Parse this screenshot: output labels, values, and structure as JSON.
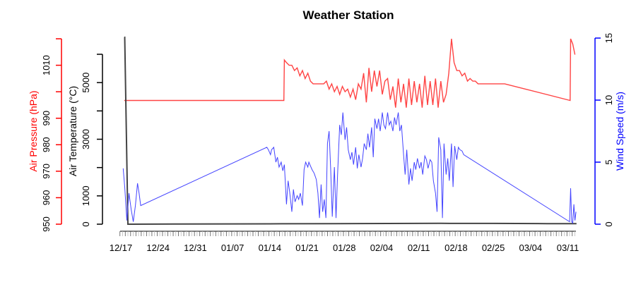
{
  "chart_data": {
    "type": "line",
    "title": "Weather Station",
    "xlabel": "",
    "x_tick_labels": [
      "12/17",
      "12/24",
      "12/31",
      "01/07",
      "01/14",
      "01/21",
      "01/28",
      "02/04",
      "02/11",
      "02/18",
      "02/25",
      "03/04",
      "03/11"
    ],
    "x_unit": "days since 12/17",
    "axes": {
      "pressure": {
        "label": "Air Pressure (hPa)",
        "color": "#ff0000",
        "ticks": [
          950,
          960,
          970,
          980,
          990,
          1000,
          1010,
          1020
        ],
        "tick_labels": [
          "950",
          "960",
          "970",
          "980",
          "990",
          "",
          "1010",
          ""
        ],
        "range": [
          950,
          1020
        ]
      },
      "temperature": {
        "label": "Air Temperature (°C)",
        "color": "#000000",
        "ticks": [
          0,
          1000,
          2000,
          3000,
          4000,
          5000,
          6000
        ],
        "tick_labels": [
          "0",
          "1000",
          "",
          "3000",
          "",
          "5000",
          ""
        ],
        "range": [
          0,
          6000
        ]
      },
      "wind": {
        "label": "Wind Speed (m/s)",
        "color": "#0000ff",
        "ticks": [
          0,
          5,
          10,
          15
        ],
        "tick_labels": [
          "0",
          "5",
          "10",
          "15"
        ],
        "range": [
          0,
          15
        ]
      }
    },
    "series": [
      {
        "name": "Air Pressure",
        "axis": "pressure",
        "color": "#ff4444",
        "x": [
          0.5,
          30.5,
          30.6,
          31,
          31.5,
          32,
          32.5,
          33,
          33.5,
          34,
          34.5,
          35,
          35.5,
          36,
          36.5,
          38,
          38.5,
          39,
          39.5,
          40,
          40.5,
          41,
          41.5,
          42,
          42.5,
          43,
          43.5,
          44,
          44.5,
          45,
          45.5,
          46,
          46.5,
          47,
          47.5,
          48,
          48.5,
          49,
          49.5,
          50,
          50.5,
          51,
          51.5,
          52,
          52.5,
          53,
          53.5,
          54,
          54.5,
          55,
          55.5,
          56,
          56.5,
          57,
          57.5,
          58,
          58.5,
          59,
          59.5,
          60,
          60.5,
          61,
          61.5,
          62,
          62.5,
          63,
          63.5,
          64,
          64.5,
          65,
          65.5,
          66,
          66.5,
          67,
          67.5,
          68,
          68.5,
          69,
          69.5,
          70,
          70.5,
          71,
          71.5,
          72,
          84.3,
          84.4,
          84.8,
          85.2
        ],
        "values": [
          996.7,
          996.7,
          1012,
          1011,
          1010,
          1010,
          1008,
          1009,
          1006,
          1008,
          1005,
          1007,
          1004,
          1003,
          1003,
          1003,
          1004,
          1001,
          1003,
          1000,
          1002,
          999,
          1002,
          1000,
          1001,
          998,
          1001,
          997,
          1003,
          1001,
          1007,
          996,
          1009,
          1000,
          1008,
          1002,
          1008,
          999,
          1004,
          1005,
          997,
          1002,
          994,
          1005,
          996,
          1003,
          994,
          1005,
          995,
          1004,
          996,
          1003,
          994,
          1006,
          995,
          1004,
          995,
          1005,
          994,
          1004,
          996,
          999,
          1007,
          1020,
          1011,
          1008,
          1008,
          1006,
          1007,
          1004,
          1005,
          1004,
          1004,
          1003,
          1003,
          1003,
          1003,
          1003,
          1003,
          1003,
          1003,
          1003,
          1003,
          1003,
          996.7,
          1020,
          1018,
          1014
        ]
      },
      {
        "name": "Air Temperature",
        "axis": "temperature",
        "color": "#444444",
        "x": [
          0.5,
          0.6,
          1.2,
          1.6,
          2,
          10,
          20,
          30,
          40,
          50,
          60,
          70,
          80,
          85.5
        ],
        "values": [
          6600,
          6600,
          0,
          0,
          0,
          5,
          10,
          15,
          20,
          25,
          30,
          28,
          20,
          20
        ]
      },
      {
        "name": "Wind Speed",
        "axis": "wind",
        "color": "#4444ff",
        "x": [
          0.3,
          0.6,
          1,
          1.4,
          1.8,
          2.2,
          2.6,
          3,
          3.3,
          3.6,
          27.3,
          27.6,
          28,
          28.2,
          28.6,
          29,
          29.3,
          29.6,
          30,
          30.3,
          30.6,
          31,
          31.3,
          31.6,
          32,
          32.3,
          32.6,
          33,
          33.3,
          33.6,
          34,
          34.3,
          34.6,
          35,
          35.2,
          35.5,
          35.8,
          36.2,
          36.6,
          36.9,
          37.2,
          37.5,
          37.8,
          38.1,
          38.4,
          38.7,
          39,
          39.3,
          39.6,
          40,
          40.3,
          40.6,
          41,
          41.3,
          41.6,
          42,
          42.3,
          42.6,
          43,
          43.3,
          43.6,
          44,
          44.3,
          44.6,
          45,
          45.3,
          45.6,
          46,
          46.3,
          46.6,
          47,
          47.3,
          47.6,
          48,
          48.3,
          48.6,
          49,
          49.3,
          49.6,
          50,
          50.3,
          50.6,
          51,
          51.3,
          51.6,
          52,
          52.3,
          52.6,
          53,
          53.3,
          53.6,
          54,
          54.3,
          54.6,
          55,
          55.3,
          55.6,
          56,
          56.3,
          56.6,
          57,
          57.3,
          57.6,
          58,
          58.3,
          58.6,
          59,
          59.3,
          59.6,
          60,
          60.3,
          60.6,
          61,
          61.3,
          61.6,
          62,
          62.3,
          62.6,
          63,
          63.3,
          63.6,
          64,
          64.3,
          84.2,
          84.4,
          84.6,
          84.8,
          85,
          85.2,
          85.4
        ],
        "values": [
          4.5,
          3,
          0.3,
          2.5,
          1.2,
          0.2,
          1.5,
          3.3,
          2.5,
          1.5,
          6.2,
          6.0,
          5.6,
          6.0,
          6.2,
          5.0,
          5.4,
          4.6,
          5.0,
          4.3,
          4.8,
          1.6,
          3.5,
          2.6,
          1.0,
          2.8,
          1.8,
          2.3,
          2.0,
          2.5,
          1.5,
          4.4,
          5.0,
          4.6,
          5.0,
          4.7,
          4.4,
          4.1,
          3.6,
          2.5,
          0.5,
          3.2,
          1.0,
          2.0,
          0.5,
          6.5,
          7.5,
          4.5,
          0.6,
          4.6,
          0.5,
          4.0,
          8.0,
          7.2,
          9.0,
          6.8,
          7.8,
          6.0,
          5.2,
          5.8,
          4.8,
          6.2,
          4.5,
          5.6,
          4.6,
          5.3,
          6.5,
          6.0,
          7.3,
          6.2,
          7.8,
          5.4,
          8.5,
          7.7,
          8.5,
          7.5,
          9.0,
          8.0,
          7.7,
          9.0,
          8.0,
          8.3,
          7.5,
          8.6,
          8.0,
          9.0,
          7.5,
          8.0,
          5.6,
          4.0,
          6.0,
          3.2,
          4.5,
          3.5,
          5.0,
          4.4,
          5.3,
          4.5,
          5.0,
          4.0,
          5.5,
          5.2,
          4.5,
          5.2,
          5.0,
          3.5,
          2.5,
          1.0,
          7.0,
          6.0,
          0.5,
          6.5,
          4.0,
          5.3,
          3.5,
          6.5,
          3.0,
          6.3,
          5.2,
          6.2,
          6.0,
          5.9,
          5.6,
          0.2,
          2.9,
          0.2,
          0.1,
          1.6,
          0.3,
          1.0
        ]
      }
    ],
    "grid": false,
    "legend": null
  }
}
